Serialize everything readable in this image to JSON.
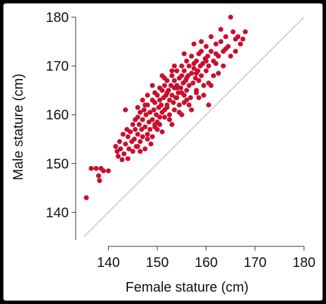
{
  "chart_data": {
    "type": "scatter",
    "title": "",
    "xlabel": "Female stature (cm)",
    "ylabel": "Male stature (cm)",
    "xlim": [
      135,
      180
    ],
    "ylim": [
      135,
      180
    ],
    "xticks": [
      140,
      150,
      160,
      170,
      180
    ],
    "yticks": [
      140,
      150,
      160,
      170,
      180
    ],
    "grid": false,
    "reference_line": "y = x",
    "colors": {
      "points": "#c8102e",
      "reference_line": "#b0b0b0",
      "axes": "#333333"
    },
    "series": [
      {
        "points": [
          [
            135.5,
            143.0
          ],
          [
            136.5,
            149.0
          ],
          [
            137.5,
            149.0
          ],
          [
            138.2,
            146.5
          ],
          [
            138.0,
            147.5
          ],
          [
            138.5,
            149.0
          ],
          [
            140.0,
            148.5
          ],
          [
            141.5,
            153.5
          ],
          [
            141.8,
            152.5
          ],
          [
            142.0,
            151.5
          ],
          [
            142.3,
            154.5
          ],
          [
            142.5,
            153.0
          ],
          [
            142.8,
            150.8
          ],
          [
            143.0,
            156.0
          ],
          [
            143.2,
            152.0
          ],
          [
            143.5,
            154.0
          ],
          [
            143.8,
            157.0
          ],
          [
            144.0,
            155.5
          ],
          [
            144.2,
            153.0
          ],
          [
            144.5,
            156.5
          ],
          [
            144.8,
            154.5
          ],
          [
            145.0,
            152.5
          ],
          [
            145.0,
            158.0
          ],
          [
            145.3,
            155.0
          ],
          [
            145.5,
            157.0
          ],
          [
            145.7,
            153.5
          ],
          [
            146.0,
            156.0
          ],
          [
            146.0,
            159.5
          ],
          [
            146.3,
            158.0
          ],
          [
            146.5,
            154.5
          ],
          [
            146.5,
            160.5
          ],
          [
            146.8,
            157.0
          ],
          [
            147.0,
            159.0
          ],
          [
            147.0,
            155.5
          ],
          [
            147.3,
            161.0
          ],
          [
            147.5,
            157.5
          ],
          [
            147.7,
            160.0
          ],
          [
            148.0,
            156.0
          ],
          [
            148.0,
            162.0
          ],
          [
            148.3,
            158.5
          ],
          [
            148.5,
            160.5
          ],
          [
            148.7,
            154.0
          ],
          [
            149.0,
            159.0
          ],
          [
            149.0,
            163.0
          ],
          [
            149.3,
            161.0
          ],
          [
            149.5,
            157.5
          ],
          [
            149.5,
            162.5
          ],
          [
            149.8,
            160.0
          ],
          [
            150.0,
            158.5
          ],
          [
            150.0,
            164.0
          ],
          [
            150.3,
            161.5
          ],
          [
            150.5,
            163.0
          ],
          [
            150.5,
            159.5
          ],
          [
            150.8,
            162.0
          ],
          [
            151.0,
            165.0
          ],
          [
            151.0,
            160.5
          ],
          [
            151.3,
            163.5
          ],
          [
            151.5,
            161.0
          ],
          [
            151.5,
            166.0
          ],
          [
            151.8,
            164.0
          ],
          [
            152.0,
            162.0
          ],
          [
            152.0,
            167.0
          ],
          [
            152.3,
            165.0
          ],
          [
            152.5,
            163.0
          ],
          [
            152.5,
            160.0
          ],
          [
            152.8,
            166.0
          ],
          [
            153.0,
            164.0
          ],
          [
            153.0,
            168.0
          ],
          [
            153.3,
            162.5
          ],
          [
            153.5,
            165.5
          ],
          [
            153.5,
            167.0
          ],
          [
            153.8,
            163.5
          ],
          [
            154.0,
            166.0
          ],
          [
            154.0,
            169.0
          ],
          [
            154.3,
            164.5
          ],
          [
            154.5,
            167.5
          ],
          [
            154.5,
            162.0
          ],
          [
            154.8,
            165.5
          ],
          [
            155.0,
            168.0
          ],
          [
            155.0,
            170.0
          ],
          [
            155.3,
            166.5
          ],
          [
            155.5,
            164.0
          ],
          [
            155.5,
            169.0
          ],
          [
            155.8,
            167.0
          ],
          [
            156.0,
            165.0
          ],
          [
            156.0,
            171.0
          ],
          [
            156.3,
            168.0
          ],
          [
            156.5,
            166.0
          ],
          [
            156.5,
            170.0
          ],
          [
            156.8,
            163.5
          ],
          [
            157.0,
            168.5
          ],
          [
            157.0,
            172.0
          ],
          [
            157.3,
            166.5
          ],
          [
            157.5,
            169.5
          ],
          [
            157.8,
            167.5
          ],
          [
            158.0,
            171.0
          ],
          [
            158.0,
            165.0
          ],
          [
            158.3,
            169.0
          ],
          [
            158.5,
            172.5
          ],
          [
            158.5,
            167.0
          ],
          [
            158.8,
            170.0
          ],
          [
            159.0,
            168.0
          ],
          [
            159.0,
            173.0
          ],
          [
            159.3,
            170.5
          ],
          [
            159.5,
            166.0
          ],
          [
            159.8,
            171.5
          ],
          [
            160.0,
            169.0
          ],
          [
            160.0,
            174.0
          ],
          [
            160.3,
            172.0
          ],
          [
            160.5,
            162.0
          ],
          [
            160.5,
            170.0
          ],
          [
            161.0,
            173.0
          ],
          [
            161.5,
            171.0
          ],
          [
            162.0,
            174.5
          ],
          [
            162.5,
            172.0
          ],
          [
            163.0,
            175.0
          ],
          [
            163.5,
            173.0
          ],
          [
            164.0,
            176.0
          ],
          [
            164.5,
            174.0
          ],
          [
            165.0,
            180.0
          ],
          [
            165.5,
            177.0
          ],
          [
            166.0,
            175.5
          ],
          [
            166.5,
            176.0
          ],
          [
            167.0,
            174.5
          ],
          [
            168.0,
            177.0
          ],
          [
            145.5,
            159.0
          ],
          [
            147.5,
            162.0
          ],
          [
            149.5,
            164.5
          ],
          [
            151.5,
            167.5
          ],
          [
            153.5,
            170.0
          ],
          [
            155.5,
            172.5
          ],
          [
            157.5,
            174.5
          ],
          [
            148.5,
            157.0
          ],
          [
            150.5,
            158.0
          ],
          [
            152.5,
            159.0
          ],
          [
            154.5,
            160.5
          ],
          [
            156.5,
            162.0
          ],
          [
            158.5,
            163.5
          ],
          [
            146.5,
            152.5
          ],
          [
            144.0,
            151.0
          ],
          [
            147.5,
            153.0
          ],
          [
            149.0,
            155.5
          ],
          [
            151.0,
            156.5
          ],
          [
            153.0,
            158.0
          ],
          [
            155.0,
            160.0
          ],
          [
            157.0,
            161.0
          ],
          [
            159.5,
            164.0
          ],
          [
            161.0,
            166.0
          ],
          [
            162.5,
            168.5
          ],
          [
            163.5,
            170.0
          ],
          [
            162.0,
            170.5
          ],
          [
            161.5,
            168.0
          ],
          [
            160.5,
            166.5
          ],
          [
            158.0,
            164.5
          ],
          [
            156.0,
            163.0
          ],
          [
            154.0,
            163.5
          ],
          [
            152.0,
            161.5
          ],
          [
            150.0,
            157.0
          ],
          [
            148.0,
            155.0
          ],
          [
            146.0,
            153.5
          ],
          [
            143.5,
            161.0
          ],
          [
            139.0,
            148.5
          ],
          [
            155.0,
            164.5
          ],
          [
            157.5,
            170.5
          ],
          [
            159.0,
            175.0
          ],
          [
            161.0,
            176.0
          ],
          [
            163.0,
            177.5
          ],
          [
            153.0,
            169.0
          ],
          [
            151.0,
            168.0
          ],
          [
            149.0,
            166.0
          ],
          [
            150.5,
            165.5
          ],
          [
            152.0,
            164.5
          ],
          [
            154.0,
            165.5
          ],
          [
            156.0,
            167.5
          ],
          [
            158.0,
            168.5
          ],
          [
            160.0,
            171.0
          ],
          [
            162.0,
            172.5
          ],
          [
            164.0,
            173.5
          ],
          [
            165.0,
            172.0
          ],
          [
            166.0,
            173.0
          ],
          [
            167.5,
            175.5
          ],
          [
            146.0,
            161.5
          ],
          [
            147.0,
            163.0
          ],
          [
            148.0,
            164.0
          ],
          [
            149.5,
            158.0
          ],
          [
            151.5,
            159.5
          ],
          [
            153.5,
            161.0
          ],
          [
            155.5,
            162.5
          ]
        ]
      }
    ]
  }
}
